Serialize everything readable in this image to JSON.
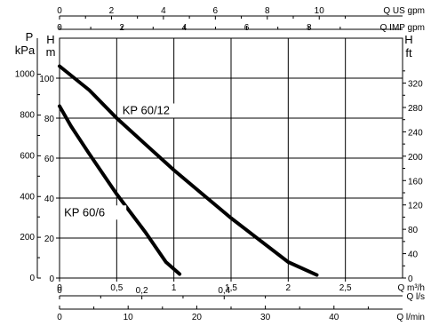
{
  "chart_data": {
    "type": "line",
    "title": "",
    "curves": [
      {
        "name": "KP 60/12",
        "x_unit": "Q m3/h",
        "y_unit": "H m",
        "points": [
          [
            0,
            106
          ],
          [
            0.26,
            94
          ],
          [
            0.5,
            80
          ],
          [
            0.75,
            67
          ],
          [
            1.0,
            54
          ],
          [
            1.25,
            42
          ],
          [
            1.5,
            30
          ],
          [
            1.75,
            19
          ],
          [
            2.0,
            8
          ],
          [
            2.25,
            1.5
          ]
        ]
      },
      {
        "name": "KP 60/6",
        "x_unit": "Q m3/h",
        "y_unit": "H m",
        "points": [
          [
            0,
            86
          ],
          [
            0.1,
            76
          ],
          [
            0.25,
            63
          ],
          [
            0.5,
            42
          ],
          [
            0.75,
            23
          ],
          [
            0.93,
            8
          ],
          [
            1.05,
            2
          ]
        ]
      }
    ],
    "axes": {
      "bottom_main": {
        "label": "Q m³/h",
        "range": [
          0,
          3
        ],
        "ticks": [
          "0",
          "0,5",
          "1",
          "1,5",
          "2",
          "2,5"
        ],
        "tick_values": [
          0,
          0.5,
          1,
          1.5,
          2,
          2.5
        ]
      },
      "bottom_ls": {
        "label": "Q l/s",
        "ticks": [
          "0",
          "0,2",
          "0,4"
        ],
        "tick_values": [
          0,
          0.2,
          0.4
        ]
      },
      "bottom_lmin": {
        "label": "Q l/min",
        "ticks": [
          "0",
          "10",
          "20",
          "30",
          "40"
        ],
        "tick_values": [
          0,
          10,
          20,
          30,
          40
        ]
      },
      "top_us": {
        "label": "Q US gpm",
        "ticks": [
          "0",
          "2",
          "4",
          "6",
          "8",
          "10"
        ],
        "tick_values": [
          0,
          2,
          4,
          6,
          8,
          10
        ]
      },
      "top_imp": {
        "label": "Q IMP gpm",
        "ticks": [
          "0",
          "2",
          "4",
          "6",
          "8"
        ],
        "tick_values": [
          0,
          2,
          4,
          6,
          8
        ]
      },
      "left_kpa": {
        "label_top": "P",
        "label_bottom": "kPa",
        "ticks": [
          "0",
          "200",
          "400",
          "600",
          "800",
          "1000"
        ],
        "tick_values": [
          0,
          200,
          400,
          600,
          800,
          1000
        ]
      },
      "left_m": {
        "label_top": "H",
        "label_bottom": "m",
        "range": [
          0,
          120
        ],
        "ticks": [
          "0",
          "20",
          "40",
          "60",
          "80",
          "100"
        ],
        "tick_values": [
          0,
          20,
          40,
          60,
          80,
          100
        ]
      },
      "right_ft": {
        "label_top": "H",
        "label_bottom": "ft",
        "ticks": [
          "0",
          "40",
          "80",
          "120",
          "160",
          "200",
          "240",
          "280",
          "320"
        ],
        "tick_values": [
          0,
          40,
          80,
          120,
          160,
          200,
          240,
          280,
          320
        ]
      }
    },
    "grid": true
  }
}
